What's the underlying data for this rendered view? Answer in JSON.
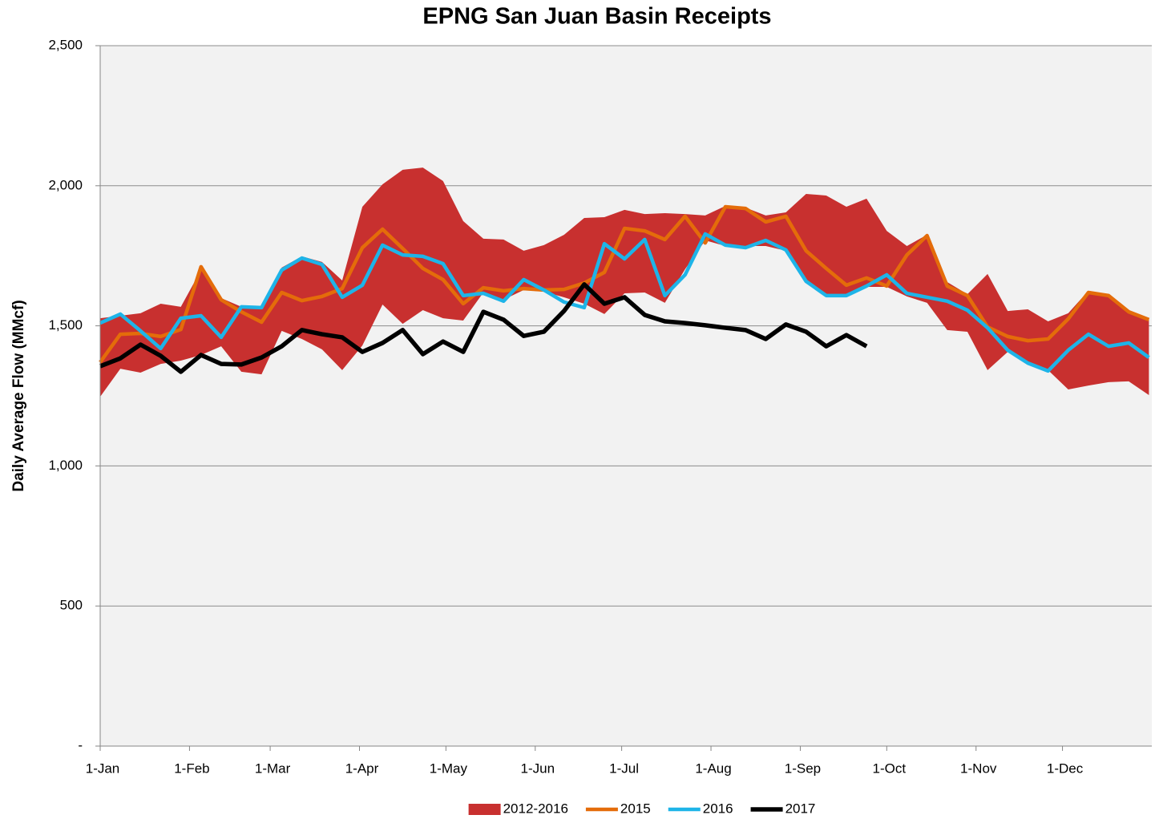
{
  "chart_data": {
    "type": "line",
    "title": "EPNG San Juan Basin Receipts",
    "y_label": "Daily Average Flow (MMcf)",
    "x": [
      0,
      7,
      14,
      21,
      28,
      35,
      42,
      49,
      56,
      63,
      70,
      77,
      84,
      91,
      98,
      105,
      112,
      119,
      126,
      133,
      140,
      147,
      154,
      161,
      168,
      175,
      182,
      189,
      196,
      203,
      210,
      217,
      224,
      231,
      238,
      245,
      252,
      259,
      266,
      273,
      280,
      287,
      294,
      301,
      308,
      315,
      322,
      329,
      336,
      343,
      350,
      357,
      364
    ],
    "xlim": [
      0,
      365
    ],
    "xticks": [
      {
        "value": 0,
        "label": "1-Jan"
      },
      {
        "value": 31,
        "label": "1-Feb"
      },
      {
        "value": 59,
        "label": "1-Mar"
      },
      {
        "value": 90,
        "label": "1-Apr"
      },
      {
        "value": 120,
        "label": "1-May"
      },
      {
        "value": 151,
        "label": "1-Jun"
      },
      {
        "value": 181,
        "label": "1-Jul"
      },
      {
        "value": 212,
        "label": "1-Aug"
      },
      {
        "value": 243,
        "label": "1-Sep"
      },
      {
        "value": 273,
        "label": "1-Oct"
      },
      {
        "value": 304,
        "label": "1-Nov"
      },
      {
        "value": 334,
        "label": "1-Dec"
      }
    ],
    "ylim": [
      0,
      2500
    ],
    "yticks": [
      {
        "value": 0,
        "label": "-"
      },
      500,
      {
        "value": 1000,
        "label": "1,000"
      },
      {
        "value": 1500,
        "label": "1,500"
      },
      {
        "value": 2000,
        "label": "2,000"
      },
      {
        "value": 2500,
        "label": "2,500"
      }
    ],
    "grid": true,
    "legend": "bottom",
    "series": [
      {
        "name": "2012-2016",
        "color": "#c8302f",
        "low": [
          1247,
          1347,
          1333,
          1364,
          1376,
          1396,
          1427,
          1336,
          1327,
          1482,
          1453,
          1416,
          1342,
          1430,
          1576,
          1507,
          1556,
          1527,
          1519,
          1619,
          1593,
          1628,
          1622,
          1602,
          1579,
          1542,
          1616,
          1619,
          1582,
          1702,
          1805,
          1785,
          1785,
          1785,
          1768,
          1662,
          1608,
          1605,
          1639,
          1639,
          1605,
          1582,
          1485,
          1479,
          1342,
          1407,
          1362,
          1342,
          1273,
          1287,
          1299,
          1302,
          1253
        ],
        "high": [
          1527,
          1536,
          1545,
          1579,
          1568,
          1699,
          1599,
          1568,
          1565,
          1708,
          1748,
          1728,
          1662,
          1925,
          2005,
          2057,
          2065,
          2017,
          1874,
          1811,
          1808,
          1768,
          1788,
          1825,
          1885,
          1888,
          1914,
          1899,
          1902,
          1899,
          1894,
          1928,
          1922,
          1894,
          1905,
          1971,
          1965,
          1925,
          1954,
          1839,
          1785,
          1825,
          1656,
          1613,
          1685,
          1553,
          1559,
          1516,
          1545,
          1625,
          1613,
          1550,
          1525
        ]
      },
      {
        "name": "2015",
        "color": "#e46c0a",
        "values": [
          1370,
          1470,
          1473,
          1462,
          1487,
          1711,
          1593,
          1550,
          1513,
          1619,
          1590,
          1605,
          1633,
          1779,
          1845,
          1776,
          1705,
          1665,
          1579,
          1636,
          1625,
          1633,
          1628,
          1630,
          1653,
          1691,
          1848,
          1839,
          1808,
          1891,
          1796,
          1925,
          1919,
          1871,
          1891,
          1768,
          1705,
          1645,
          1671,
          1642,
          1753,
          1822,
          1642,
          1608,
          1496,
          1462,
          1447,
          1453,
          1525,
          1619,
          1608,
          1550,
          1522
        ]
      },
      {
        "name": "2016",
        "color": "#1eb4e8",
        "values": [
          1510,
          1542,
          1482,
          1419,
          1527,
          1536,
          1459,
          1568,
          1565,
          1699,
          1742,
          1719,
          1602,
          1645,
          1788,
          1753,
          1748,
          1722,
          1608,
          1616,
          1588,
          1665,
          1628,
          1585,
          1565,
          1793,
          1739,
          1808,
          1608,
          1682,
          1828,
          1788,
          1779,
          1805,
          1771,
          1659,
          1608,
          1608,
          1642,
          1682,
          1616,
          1602,
          1588,
          1556,
          1493,
          1413,
          1367,
          1339,
          1413,
          1470,
          1427,
          1439,
          1387
        ]
      },
      {
        "name": "2017",
        "color": "#000000",
        "values": [
          1356,
          1384,
          1433,
          1393,
          1336,
          1396,
          1364,
          1362,
          1387,
          1427,
          1485,
          1470,
          1459,
          1407,
          1439,
          1485,
          1399,
          1444,
          1407,
          1550,
          1522,
          1464,
          1479,
          1553,
          1648,
          1579,
          1602,
          1539,
          1516,
          1510,
          1502,
          1493,
          1485,
          1453,
          1505,
          1479,
          1427,
          1467,
          1427,
          null,
          null,
          null,
          null,
          null,
          null,
          null,
          null,
          null,
          null,
          null,
          null,
          null,
          null
        ]
      }
    ]
  }
}
